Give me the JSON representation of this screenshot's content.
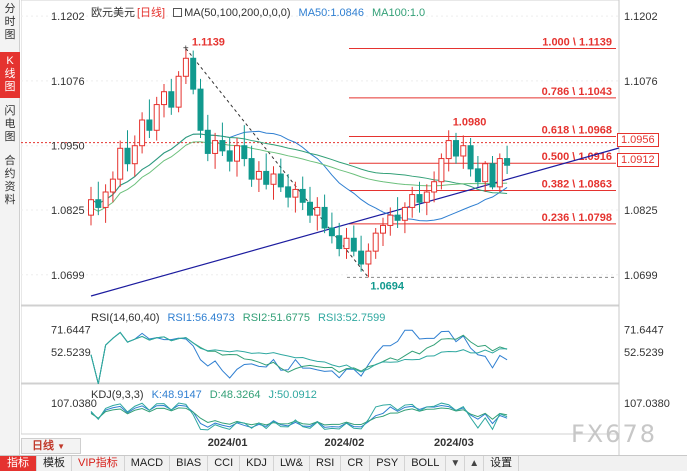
{
  "side_tabs": [
    {
      "label": "分时图",
      "active": false
    },
    {
      "label": "K线图",
      "active": true
    },
    {
      "label": "闪电图",
      "active": false
    },
    {
      "label": "合约资料",
      "active": false
    }
  ],
  "main": {
    "symbol": "欧元美元",
    "period_tag": "[日线]",
    "ma_label": "MA(50,100,200,0,0,0)",
    "ma50": "MA50:1.0846",
    "ma100": "MA100:1.0",
    "price_axis": [
      "1.1202",
      "1.1076",
      "1.0950",
      "1.0825",
      "1.0699"
    ],
    "price_axis_right": [
      "1.1202",
      "1.1076",
      "1.0956",
      "1.0825",
      "1.0699"
    ],
    "current_price_tag": "1.0956",
    "second_price_tag": "1.0912",
    "high_label": "1.1139",
    "low_label": "1.0694",
    "recent_high_label": "1.0980",
    "fib_levels": [
      {
        "label": "1.000 \\ 1.1139",
        "price": 1.1139
      },
      {
        "label": "0.786 \\ 1.1043",
        "price": 1.1043
      },
      {
        "label": "0.618 \\ 1.0968",
        "price": 1.0968
      },
      {
        "label": "0.500 \\ 1.0916",
        "price": 1.0916
      },
      {
        "label": "0.382 \\ 1.0863",
        "price": 1.0863
      },
      {
        "label": "0.236 \\ 1.0798",
        "price": 1.0798
      }
    ],
    "low_line_price": 1.0694,
    "colors": {
      "up": "#e5332f",
      "down": "#11998e",
      "ma50": "#2f7fd1",
      "ma100": "#33a077",
      "ma200": "#6cc07c",
      "trend": "#1c1c9f",
      "fib": "#e5332f"
    }
  },
  "rsi": {
    "label": "RSI(14,60,40)",
    "rsi1": "RSI1:56.4973",
    "rsi2": "RSI2:51.6775",
    "rsi3": "RSI3:52.7599",
    "axis": [
      "71.6447",
      "52.5239"
    ]
  },
  "kdj": {
    "label": "KDJ(9,3,3)",
    "k": "K:48.9147",
    "d": "D:48.3264",
    "j": "J:50.0912",
    "axis": [
      "107.0380"
    ]
  },
  "dates": [
    "2024/01",
    "2024/02",
    "2024/03"
  ],
  "period_bar": "日线",
  "toolbar": [
    "指标",
    "模板",
    "VIP指标",
    "MACD",
    "BIAS",
    "CCI",
    "KDJ",
    "LW&",
    "RSI",
    "CR",
    "PSY",
    "BOLL",
    "设置"
  ],
  "watermark": "FX678",
  "chart_data": {
    "type": "candlestick",
    "title": "欧元美元",
    "ylim": [
      1.065,
      1.121
    ],
    "candles": [
      [
        1.0815,
        1.087,
        1.0795,
        1.0845
      ],
      [
        1.0845,
        1.088,
        1.0815,
        1.083
      ],
      [
        1.083,
        1.0875,
        1.08,
        1.086
      ],
      [
        1.086,
        1.09,
        1.084,
        1.0885
      ],
      [
        1.0885,
        1.096,
        1.087,
        1.0945
      ],
      [
        1.0945,
        1.098,
        1.09,
        1.0915
      ],
      [
        1.0915,
        1.097,
        1.089,
        1.095
      ],
      [
        1.095,
        1.1015,
        1.0935,
        1.1
      ],
      [
        1.1,
        1.104,
        1.0965,
        1.098
      ],
      [
        1.098,
        1.1045,
        1.096,
        1.103
      ],
      [
        1.103,
        1.107,
        1.1005,
        1.1055
      ],
      [
        1.1055,
        1.108,
        1.101,
        1.1025
      ],
      [
        1.1025,
        1.1095,
        1.1015,
        1.1085
      ],
      [
        1.1085,
        1.1139,
        1.107,
        1.112
      ],
      [
        1.112,
        1.1135,
        1.105,
        1.106
      ],
      [
        1.106,
        1.108,
        1.0965,
        1.098
      ],
      [
        1.098,
        1.101,
        1.092,
        1.0935
      ],
      [
        1.0935,
        1.0975,
        1.0905,
        1.096
      ],
      [
        1.096,
        1.0995,
        1.093,
        1.094
      ],
      [
        1.094,
        1.0965,
        1.09,
        1.092
      ],
      [
        1.092,
        1.0965,
        1.089,
        1.095
      ],
      [
        1.095,
        1.099,
        1.091,
        1.0925
      ],
      [
        1.0925,
        1.095,
        1.087,
        1.0885
      ],
      [
        1.0885,
        1.092,
        1.086,
        1.09
      ],
      [
        1.09,
        1.0935,
        1.0865,
        1.0875
      ],
      [
        1.0875,
        1.091,
        1.0845,
        1.0895
      ],
      [
        1.0895,
        1.0925,
        1.086,
        1.087
      ],
      [
        1.087,
        1.0895,
        1.083,
        1.085
      ],
      [
        1.085,
        1.088,
        1.082,
        1.0865
      ],
      [
        1.0865,
        1.089,
        1.0825,
        1.084
      ],
      [
        1.084,
        1.087,
        1.08,
        1.0815
      ],
      [
        1.0815,
        1.085,
        1.0785,
        1.083
      ],
      [
        1.083,
        1.0855,
        1.078,
        1.079
      ],
      [
        1.079,
        1.082,
        1.076,
        1.0775
      ],
      [
        1.0775,
        1.08,
        1.0735,
        1.075
      ],
      [
        1.075,
        1.079,
        1.073,
        1.077
      ],
      [
        1.077,
        1.0795,
        1.0735,
        1.0745
      ],
      [
        1.0745,
        1.0775,
        1.0705,
        1.072
      ],
      [
        1.072,
        1.076,
        1.0694,
        1.0745
      ],
      [
        1.0745,
        1.079,
        1.073,
        1.078
      ],
      [
        1.078,
        1.081,
        1.0755,
        1.0795
      ],
      [
        1.0795,
        1.083,
        1.0775,
        1.0815
      ],
      [
        1.0815,
        1.085,
        1.079,
        1.0805
      ],
      [
        1.0805,
        1.084,
        1.078,
        1.083
      ],
      [
        1.083,
        1.087,
        1.081,
        1.0855
      ],
      [
        1.0855,
        1.088,
        1.082,
        1.084
      ],
      [
        1.084,
        1.0875,
        1.0815,
        1.086
      ],
      [
        1.086,
        1.09,
        1.084,
        1.088
      ],
      [
        1.088,
        1.0935,
        1.0865,
        1.0925
      ],
      [
        1.0925,
        1.098,
        1.09,
        1.096
      ],
      [
        1.096,
        1.0975,
        1.0915,
        1.093
      ],
      [
        1.093,
        1.097,
        1.0905,
        1.095
      ],
      [
        1.095,
        1.0965,
        1.089,
        1.0905
      ],
      [
        1.0905,
        1.093,
        1.087,
        1.088
      ],
      [
        1.088,
        1.092,
        1.086,
        1.0915
      ],
      [
        1.0915,
        1.093,
        1.0865,
        1.087
      ],
      [
        1.087,
        1.0935,
        1.086,
        1.0925
      ],
      [
        1.0925,
        1.095,
        1.0895,
        1.0912
      ]
    ]
  }
}
